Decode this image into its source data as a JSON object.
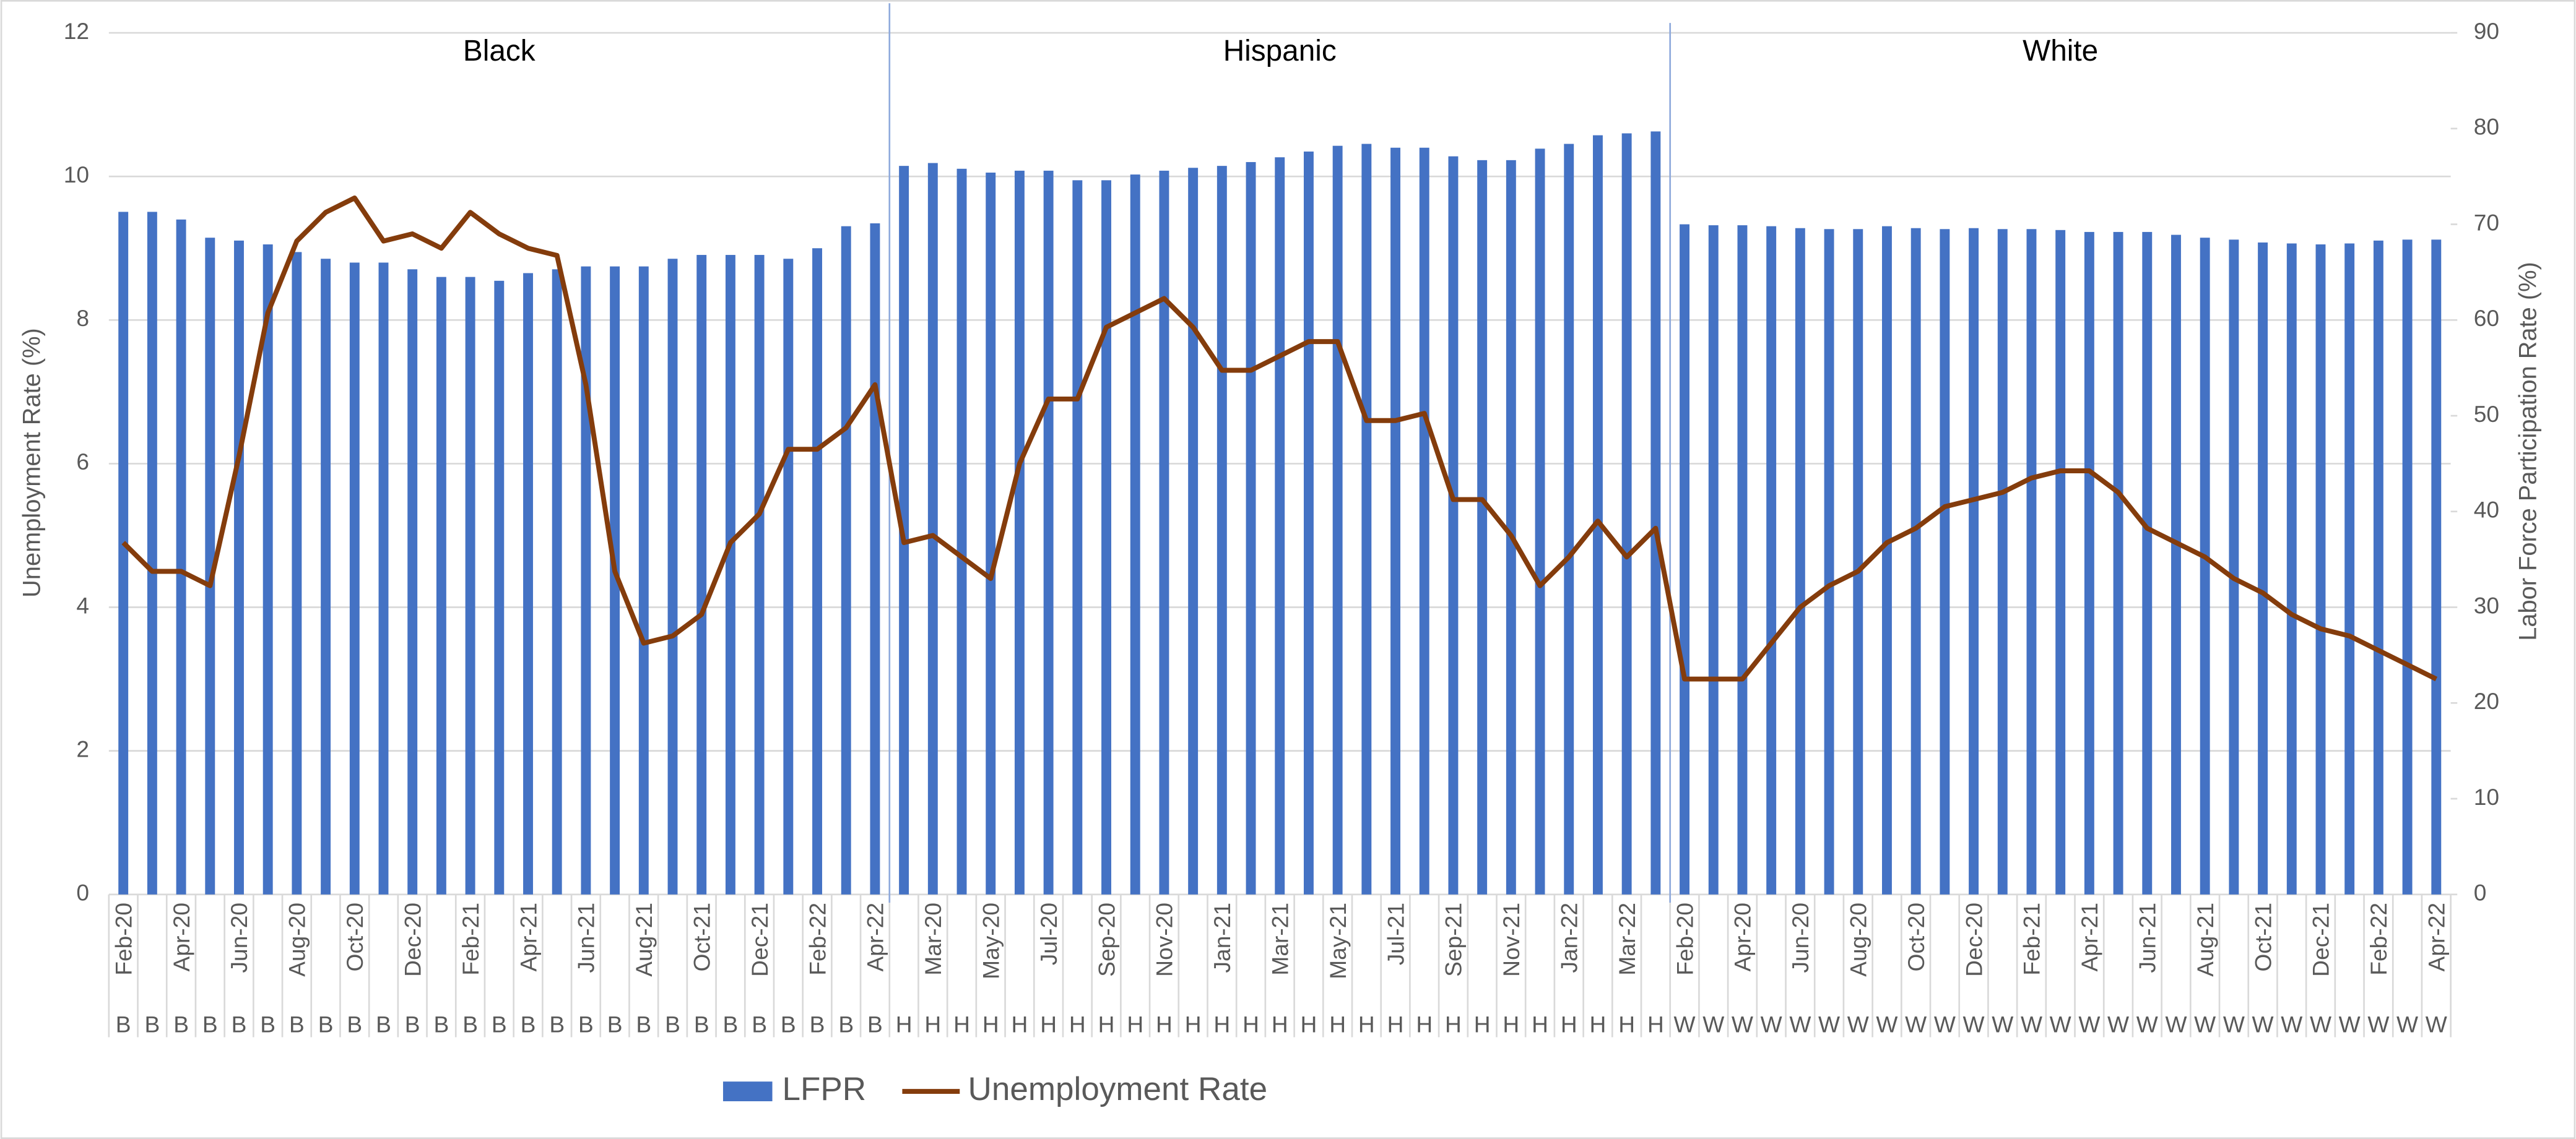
{
  "chart_data": {
    "type": "combo",
    "y_axis_label": "Unemployment Rate (%)",
    "y2_axis_label": "Labor Force Participation Rate (%)",
    "ylim": [
      0,
      12
    ],
    "yticks": [
      0,
      2,
      4,
      6,
      8,
      10,
      12
    ],
    "y2lim": [
      0,
      90
    ],
    "y2ticks": [
      0,
      10,
      20,
      30,
      40,
      50,
      60,
      70,
      80,
      90
    ],
    "grid": true,
    "legend_position": "bottom",
    "group_labels": [
      "Black",
      "Hispanic",
      "White"
    ],
    "categories": [
      "Feb-20",
      null,
      "Apr-20",
      null,
      "Jun-20",
      null,
      "Aug-20",
      null,
      "Oct-20",
      null,
      "Dec-20",
      null,
      "Feb-21",
      null,
      "Apr-21",
      null,
      "Jun-21",
      null,
      "Aug-21",
      null,
      "Oct-21",
      null,
      "Dec-21",
      null,
      "Feb-22",
      null,
      "Apr-22",
      null,
      "Mar-20",
      null,
      "May-20",
      null,
      "Jul-20",
      null,
      "Sep-20",
      null,
      "Nov-20",
      null,
      "Jan-21",
      null,
      "Mar-21",
      null,
      "May-21",
      null,
      "Jul-21",
      null,
      "Sep-21",
      null,
      "Nov-21",
      null,
      "Jan-22",
      null,
      "Mar-22",
      null,
      "Feb-20",
      null,
      "Apr-20",
      null,
      "Jun-20",
      null,
      "Aug-20",
      null,
      "Oct-20",
      null,
      "Dec-20",
      null,
      "Feb-21",
      null,
      "Apr-21",
      null,
      "Jun-21",
      null,
      "Aug-21",
      null,
      "Oct-21",
      null,
      "Dec-21",
      null,
      "Feb-22",
      null,
      "Apr-22"
    ],
    "category_groups": [
      "B",
      "B",
      "B",
      "B",
      "B",
      "B",
      "B",
      "B",
      "B",
      "B",
      "B",
      "B",
      "B",
      "B",
      "B",
      "B",
      "B",
      "B",
      "B",
      "B",
      "B",
      "B",
      "B",
      "B",
      "B",
      "B",
      "B",
      "H",
      "H",
      "H",
      "H",
      "H",
      "H",
      "H",
      "H",
      "H",
      "H",
      "H",
      "H",
      "H",
      "H",
      "H",
      "H",
      "H",
      "H",
      "H",
      "H",
      "H",
      "H",
      "H",
      "H",
      "H",
      "H",
      "H",
      "W",
      "W",
      "W",
      "W",
      "W",
      "W",
      "W",
      "W",
      "W",
      "W",
      "W",
      "W",
      "W",
      "W",
      "W",
      "W",
      "W",
      "W",
      "W",
      "W",
      "W",
      "W",
      "W",
      "W",
      "W",
      "W",
      "W"
    ],
    "series": [
      {
        "name": "LFPR",
        "type": "bar",
        "axis": "y2",
        "color": "#4472c4",
        "values": [
          71.3,
          71.3,
          70.5,
          68.6,
          68.3,
          67.9,
          67.1,
          66.4,
          66.0,
          66.0,
          65.3,
          64.5,
          64.5,
          64.1,
          64.9,
          65.3,
          65.6,
          65.6,
          65.6,
          66.4,
          66.8,
          66.8,
          66.8,
          66.4,
          67.5,
          69.8,
          70.1,
          76.1,
          76.4,
          75.8,
          75.4,
          75.6,
          75.6,
          74.6,
          74.6,
          75.2,
          75.6,
          75.9,
          76.1,
          76.5,
          77.0,
          77.6,
          78.2,
          78.4,
          78.0,
          78.0,
          77.1,
          76.7,
          76.7,
          77.9,
          78.4,
          79.3,
          79.5,
          79.7,
          70.0,
          69.9,
          69.9,
          69.8,
          69.6,
          69.5,
          69.5,
          69.8,
          69.6,
          69.5,
          69.6,
          69.5,
          69.5,
          69.4,
          69.2,
          69.2,
          69.2,
          68.9,
          68.6,
          68.4,
          68.1,
          68.0,
          67.9,
          68.0,
          68.3,
          68.4,
          68.4
        ]
      },
      {
        "name": "Unemployment Rate",
        "type": "line",
        "axis": "y",
        "color": "#843c0c",
        "values": [
          4.9,
          4.5,
          4.5,
          4.3,
          6.1,
          8.1,
          9.1,
          9.5,
          9.7,
          9.1,
          9.2,
          9.0,
          9.5,
          9.2,
          9.0,
          8.9,
          7.1,
          4.5,
          3.5,
          3.6,
          3.9,
          4.9,
          5.3,
          6.2,
          6.2,
          6.5,
          7.1,
          4.9,
          5.0,
          4.7,
          4.4,
          6.0,
          6.9,
          6.9,
          7.9,
          8.1,
          8.3,
          7.9,
          7.3,
          7.3,
          7.5,
          7.7,
          7.7,
          6.6,
          6.6,
          6.7,
          5.5,
          5.5,
          5.0,
          4.3,
          4.7,
          5.2,
          4.7,
          5.1,
          3.0,
          3.0,
          3.0,
          3.5,
          4.0,
          4.3,
          4.5,
          4.9,
          5.1,
          5.4,
          5.5,
          5.6,
          5.8,
          5.9,
          5.9,
          5.6,
          5.1,
          4.9,
          4.7,
          4.4,
          4.2,
          3.9,
          3.7,
          3.6,
          3.4,
          3.2,
          3.0
        ]
      }
    ]
  }
}
